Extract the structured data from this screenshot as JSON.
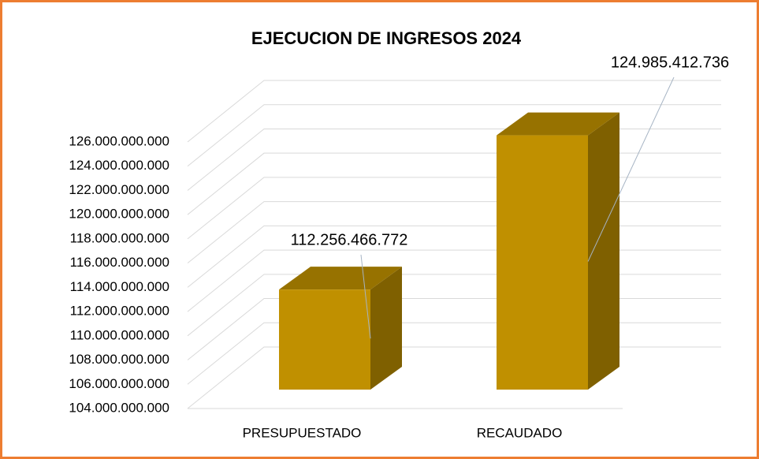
{
  "chart_data": {
    "type": "bar",
    "title": "EJECUCION DE INGRESOS 2024",
    "categories": [
      "PRESUPUESTADO",
      "RECAUDADO"
    ],
    "values": [
      112256466772,
      124985412736
    ],
    "value_labels": [
      "112.256.466.772",
      "124.985.412.736"
    ],
    "color": "#c09000",
    "ylim": [
      104000000000,
      126000000000
    ],
    "yticks": [
      {
        "value": 104000000000,
        "label": "104.000.000.000"
      },
      {
        "value": 106000000000,
        "label": "106.000.000.000"
      },
      {
        "value": 108000000000,
        "label": "108.000.000.000"
      },
      {
        "value": 110000000000,
        "label": "110.000.000.000"
      },
      {
        "value": 112000000000,
        "label": "112.000.000.000"
      },
      {
        "value": 114000000000,
        "label": "114.000.000.000"
      },
      {
        "value": 116000000000,
        "label": "116.000.000.000"
      },
      {
        "value": 118000000000,
        "label": "118.000.000.000"
      },
      {
        "value": 120000000000,
        "label": "120.000.000.000"
      },
      {
        "value": 122000000000,
        "label": "122.000.000.000"
      },
      {
        "value": 124000000000,
        "label": "124.000.000.000"
      },
      {
        "value": 126000000000,
        "label": "126.000.000.000"
      }
    ],
    "grid": true
  }
}
